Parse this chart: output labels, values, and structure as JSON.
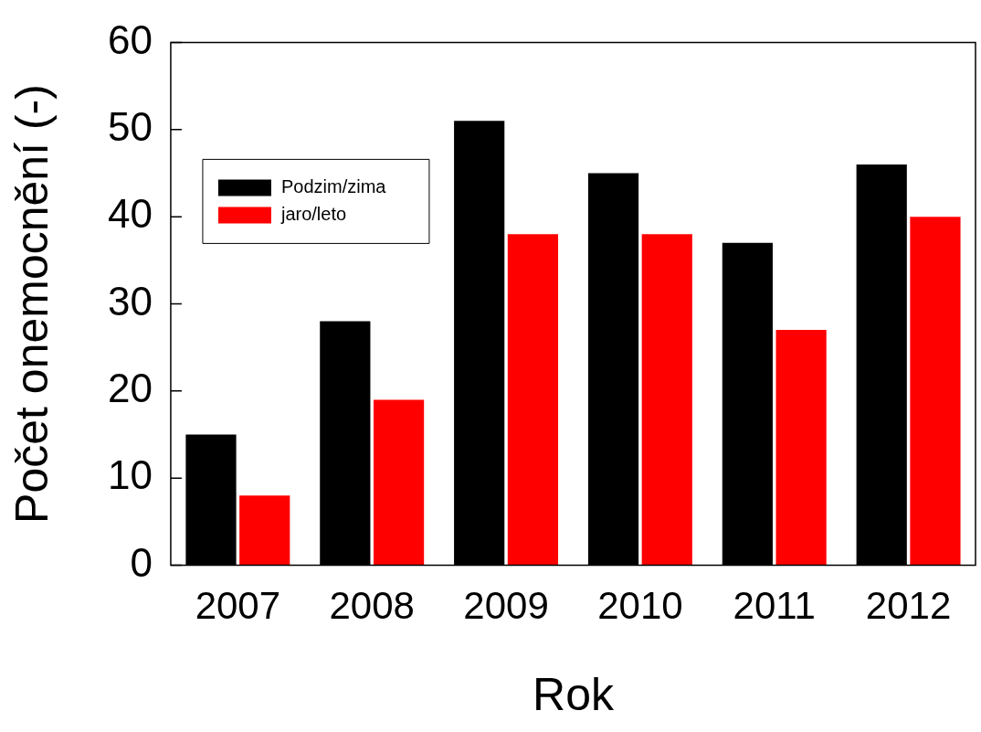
{
  "chart_data": {
    "type": "bar",
    "xlabel": "Rok",
    "ylabel": "Počet onemocnění (-)",
    "categories": [
      "2007",
      "2008",
      "2009",
      "2010",
      "2011",
      "2012"
    ],
    "series": [
      {
        "name": "Podzim/zima",
        "color": "#000000",
        "values": [
          15,
          28,
          51,
          45,
          37,
          46
        ]
      },
      {
        "name": "jaro/leto",
        "color": "#ff0000",
        "values": [
          8,
          19,
          38,
          38,
          27,
          40
        ]
      }
    ],
    "ylim": [
      0,
      60
    ],
    "yticks": [
      0,
      10,
      20,
      30,
      40,
      50,
      60
    ],
    "legend": "top left"
  }
}
